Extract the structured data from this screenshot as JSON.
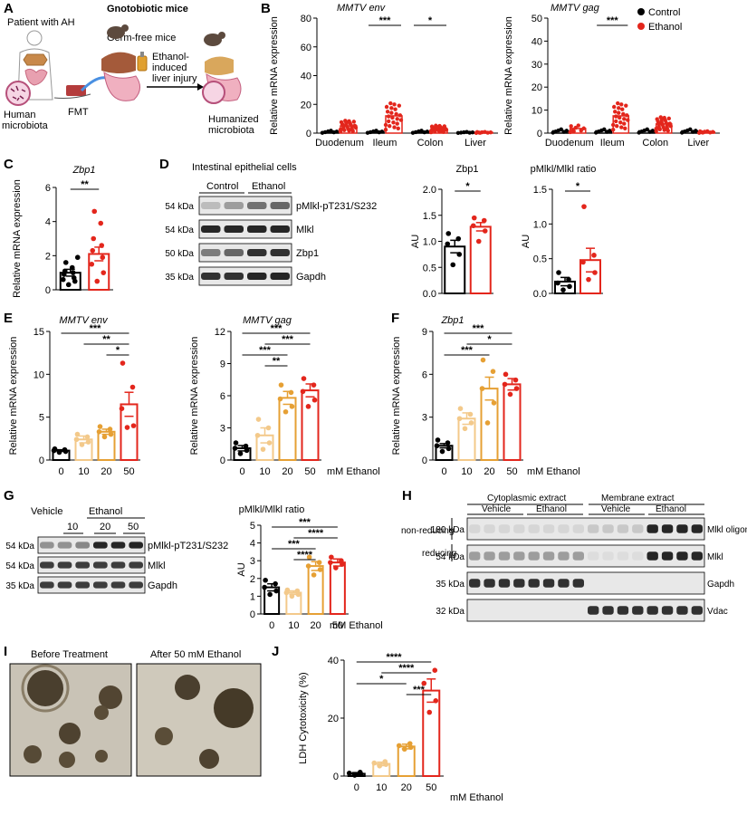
{
  "colors": {
    "control": "#000000",
    "ethanol": "#e3261c",
    "c0": "#000000",
    "c10": "#f3c98a",
    "c20": "#e6a034",
    "c50": "#e3261c"
  },
  "A": {
    "label": "A",
    "title": "Gnotobiotic mice",
    "patient": "Patient with AH",
    "germfree": "Germ-free mice",
    "human_microbiota_1": "Human",
    "human_microbiota_2": "microbiota",
    "fmt": "FMT",
    "ethanol_1": "Ethanol-",
    "ethanol_2": "induced",
    "ethanol_3": "liver injury",
    "humanized_1": "Humanized",
    "humanized_2": "microbiota"
  },
  "B": {
    "label": "B",
    "legend_control": "Control",
    "legend_ethanol": "Ethanol"
  },
  "C": {
    "label": "C"
  },
  "D": {
    "label": "D",
    "title": "Intestinal epithelial cells",
    "col_control": "Control",
    "col_ethanol": "Ethanol",
    "rows": [
      {
        "kda": "54 kDa",
        "name": "pMlkl-pT231/S232"
      },
      {
        "kda": "54 kDa",
        "name": "Mlkl"
      },
      {
        "kda": "50 kDa",
        "name": "Zbp1"
      },
      {
        "kda": "35 kDa",
        "name": "Gapdh"
      }
    ]
  },
  "E": {
    "label": "E",
    "unit": "mM Ethanol"
  },
  "F": {
    "label": "F",
    "unit": "mM Ethanol"
  },
  "G": {
    "label": "G",
    "vehicle": "Vehicle",
    "ethanol": "Ethanol",
    "doses": [
      "10",
      "20",
      "50"
    ],
    "rows": [
      {
        "kda": "54 kDa",
        "name": "pMlkl-pT231/S232"
      },
      {
        "kda": "54 kDa",
        "name": "Mlkl"
      },
      {
        "kda": "35 kDa",
        "name": "Gapdh"
      }
    ],
    "unit": "mM Ethanol"
  },
  "H": {
    "label": "H",
    "cyto": "Cytoplasmic extract",
    "membrane": "Membrane extract",
    "vehicle": "Vehicle",
    "ethanol": "Ethanol",
    "nonreducing": "non-reducing",
    "reducing": "reducing",
    "rows": [
      {
        "kda": "180 kDa",
        "name": "Mlkl oligomer"
      },
      {
        "kda": "54 kDa",
        "name": "Mlkl"
      },
      {
        "kda": "35 kDa",
        "name": "Gapdh"
      },
      {
        "kda": "32 kDa",
        "name": "Vdac"
      }
    ]
  },
  "I": {
    "label": "I",
    "before": "Before Treatment",
    "after": "After 50 mM Ethanol"
  },
  "J": {
    "label": "J",
    "unit": "mM Ethanol"
  },
  "chart_data": [
    {
      "id": "B_env",
      "type": "bar",
      "title": "MMTV env",
      "ylabel": "Relative mRNA expression",
      "ylim": [
        0,
        80
      ],
      "yticks": [
        0,
        20,
        40,
        60,
        80
      ],
      "categories": [
        "Duodenum",
        "Ileum",
        "Colon",
        "Liver"
      ],
      "series": [
        {
          "name": "Control",
          "values": [
            1,
            1,
            1,
            0.5
          ]
        },
        {
          "name": "Ethanol",
          "values": [
            5,
            12,
            3,
            0.5
          ]
        }
      ],
      "sig": [
        {
          "cat": "Ileum",
          "label": "***"
        },
        {
          "cat": "Colon",
          "label": "*"
        }
      ]
    },
    {
      "id": "B_gag",
      "type": "bar",
      "title": "MMTV gag",
      "ylabel": "Relative mRNA expression",
      "ylim": [
        0,
        50
      ],
      "yticks": [
        0,
        10,
        20,
        30,
        40,
        50
      ],
      "categories": [
        "Duodenum",
        "Ileum",
        "Colon",
        "Liver"
      ],
      "series": [
        {
          "name": "Control",
          "values": [
            1,
            1,
            1,
            1
          ]
        },
        {
          "name": "Ethanol",
          "values": [
            2,
            7.5,
            4,
            0.5
          ]
        }
      ],
      "sig": [
        {
          "cat": "Ileum",
          "label": "***"
        }
      ]
    },
    {
      "id": "C",
      "type": "bar",
      "title": "Zbp1",
      "ylabel": "Relative mRNA expression",
      "ylim": [
        0,
        6
      ],
      "yticks": [
        0,
        2,
        4,
        6
      ],
      "categories": [
        "Control",
        "Ethanol"
      ],
      "values": [
        1.0,
        2.1
      ],
      "errors": [
        0.2,
        0.4
      ],
      "points": [
        [
          0.3,
          0.5,
          0.6,
          0.7,
          0.9,
          1.0,
          1.1,
          1.3,
          1.6,
          1.9
        ],
        [
          0.5,
          1.0,
          1.5,
          1.9,
          2.3,
          2.6,
          3.0,
          3.9,
          4.6
        ]
      ],
      "sig": [
        {
          "from": 0,
          "to": 1,
          "label": "**"
        }
      ]
    },
    {
      "id": "D_zbp1",
      "type": "bar",
      "title": "Zbp1",
      "ylabel": "AU",
      "ylim": [
        0,
        2.0
      ],
      "yticks": [
        0.0,
        0.5,
        1.0,
        1.5,
        2.0
      ],
      "categories": [
        "Control",
        "Ethanol"
      ],
      "values": [
        0.9,
        1.28
      ],
      "errors": [
        0.12,
        0.08
      ],
      "points": [
        [
          0.55,
          0.75,
          0.95,
          1.05,
          1.15
        ],
        [
          1.0,
          1.2,
          1.3,
          1.4,
          1.45
        ]
      ],
      "sig": [
        {
          "from": 0,
          "to": 1,
          "label": "*"
        }
      ]
    },
    {
      "id": "D_ratio",
      "type": "bar",
      "title": "pMlkl/Mlkl ratio",
      "ylabel": "AU",
      "ylim": [
        0,
        1.5
      ],
      "yticks": [
        0.0,
        0.5,
        1.0,
        1.5
      ],
      "categories": [
        "Control",
        "Ethanol"
      ],
      "values": [
        0.17,
        0.48
      ],
      "errors": [
        0.06,
        0.17
      ],
      "points": [
        [
          0.05,
          0.1,
          0.15,
          0.2,
          0.3
        ],
        [
          0.2,
          0.3,
          0.45,
          0.55,
          1.25
        ]
      ],
      "sig": [
        {
          "from": 0,
          "to": 1,
          "label": "*"
        }
      ]
    },
    {
      "id": "E_env",
      "type": "bar",
      "title": "MMTV env",
      "ylabel": "Relative mRNA expression",
      "ylim": [
        0,
        15
      ],
      "yticks": [
        0,
        5,
        10,
        15
      ],
      "categories": [
        "0",
        "10",
        "20",
        "50"
      ],
      "values": [
        1.1,
        2.4,
        3.3,
        6.5
      ],
      "errors": [
        0.1,
        0.4,
        0.3,
        1.4
      ],
      "points": [
        [
          0.9,
          1.0,
          1.1,
          1.2,
          1.3
        ],
        [
          1.8,
          2.1,
          2.4,
          2.7,
          3.0
        ],
        [
          2.7,
          3.0,
          3.3,
          3.6,
          3.9
        ],
        [
          3.8,
          4.0,
          6.0,
          8.5,
          11.3
        ]
      ],
      "sig": [
        {
          "from": 0,
          "to": 3,
          "label": "***"
        },
        {
          "from": 1,
          "to": 3,
          "label": "**"
        },
        {
          "from": 2,
          "to": 3,
          "label": "*"
        }
      ]
    },
    {
      "id": "E_gag",
      "type": "bar",
      "title": "MMTV gag",
      "ylabel": "Relative mRNA expression",
      "ylim": [
        0,
        12
      ],
      "yticks": [
        0,
        3,
        6,
        9,
        12
      ],
      "categories": [
        "0",
        "10",
        "20",
        "50"
      ],
      "values": [
        1.1,
        2.3,
        5.8,
        6.5
      ],
      "errors": [
        0.25,
        0.7,
        0.6,
        0.6
      ],
      "points": [
        [
          0.6,
          0.9,
          1.1,
          1.3,
          1.6
        ],
        [
          1.0,
          1.6,
          2.3,
          3.0,
          3.8
        ],
        [
          4.5,
          5.0,
          5.7,
          6.3,
          7.0
        ],
        [
          5.0,
          5.6,
          6.4,
          7.0,
          7.6
        ]
      ],
      "sig": [
        {
          "from": 0,
          "to": 3,
          "label": "***"
        },
        {
          "from": 1,
          "to": 3,
          "label": "***"
        },
        {
          "from": 0,
          "to": 2,
          "label": "***"
        },
        {
          "from": 1,
          "to": 2,
          "label": "**"
        }
      ]
    },
    {
      "id": "F_zbp1",
      "type": "bar",
      "title": "Zbp1",
      "ylabel": "Relative mRNA expression",
      "ylim": [
        0,
        9
      ],
      "yticks": [
        0,
        3,
        6,
        9
      ],
      "categories": [
        "0",
        "10",
        "20",
        "50"
      ],
      "values": [
        1.0,
        2.9,
        5.0,
        5.3
      ],
      "errors": [
        0.15,
        0.4,
        0.8,
        0.4
      ],
      "points": [
        [
          0.6,
          0.8,
          1.0,
          1.2,
          1.4
        ],
        [
          2.2,
          2.6,
          2.9,
          3.2,
          3.6
        ],
        [
          2.6,
          4.0,
          5.0,
          6.2,
          7.0
        ],
        [
          4.6,
          5.0,
          5.3,
          5.6,
          6.0
        ]
      ],
      "sig": [
        {
          "from": 0,
          "to": 3,
          "label": "***"
        },
        {
          "from": 1,
          "to": 3,
          "label": "*"
        },
        {
          "from": 0,
          "to": 2,
          "label": "***"
        }
      ]
    },
    {
      "id": "G_ratio",
      "type": "bar",
      "title": "pMlkl/Mlkl ratio",
      "ylabel": "AU",
      "ylim": [
        0,
        5
      ],
      "yticks": [
        0,
        1,
        2,
        3,
        4,
        5
      ],
      "categories": [
        "0",
        "10",
        "20",
        "50"
      ],
      "values": [
        1.5,
        1.2,
        2.7,
        2.9
      ],
      "errors": [
        0.2,
        0.1,
        0.25,
        0.2
      ],
      "points": [
        [
          1.1,
          1.3,
          1.5,
          1.7,
          1.9
        ],
        [
          1.0,
          1.1,
          1.2,
          1.3,
          1.35
        ],
        [
          2.2,
          2.5,
          2.7,
          2.9,
          3.2
        ],
        [
          2.6,
          2.8,
          2.9,
          3.0,
          3.2
        ]
      ],
      "sig": [
        {
          "from": 0,
          "to": 3,
          "label": "***"
        },
        {
          "from": 1,
          "to": 3,
          "label": "****"
        },
        {
          "from": 0,
          "to": 2,
          "label": "***"
        },
        {
          "from": 1,
          "to": 2,
          "label": "****"
        }
      ]
    },
    {
      "id": "J_ldh",
      "type": "bar",
      "title": "",
      "ylabel": "LDH Cytotoxicity (%)",
      "ylim": [
        0,
        40
      ],
      "yticks": [
        0,
        20,
        40
      ],
      "categories": [
        "0",
        "10",
        "20",
        "50"
      ],
      "values": [
        0.8,
        4.2,
        10.2,
        29.5
      ],
      "errors": [
        0.4,
        0.6,
        0.8,
        4.0
      ],
      "points": [
        [
          0.3,
          0.6,
          1.0,
          1.3
        ],
        [
          3.5,
          4.0,
          4.5,
          5.0
        ],
        [
          9.3,
          9.9,
          10.5,
          11.2
        ],
        [
          22,
          26,
          32,
          36.5
        ]
      ],
      "sig": [
        {
          "from": 0,
          "to": 3,
          "label": "****"
        },
        {
          "from": 1,
          "to": 3,
          "label": "****"
        },
        {
          "from": 0,
          "to": 2,
          "label": "*"
        },
        {
          "from": 2,
          "to": 3,
          "label": "***"
        }
      ]
    }
  ]
}
